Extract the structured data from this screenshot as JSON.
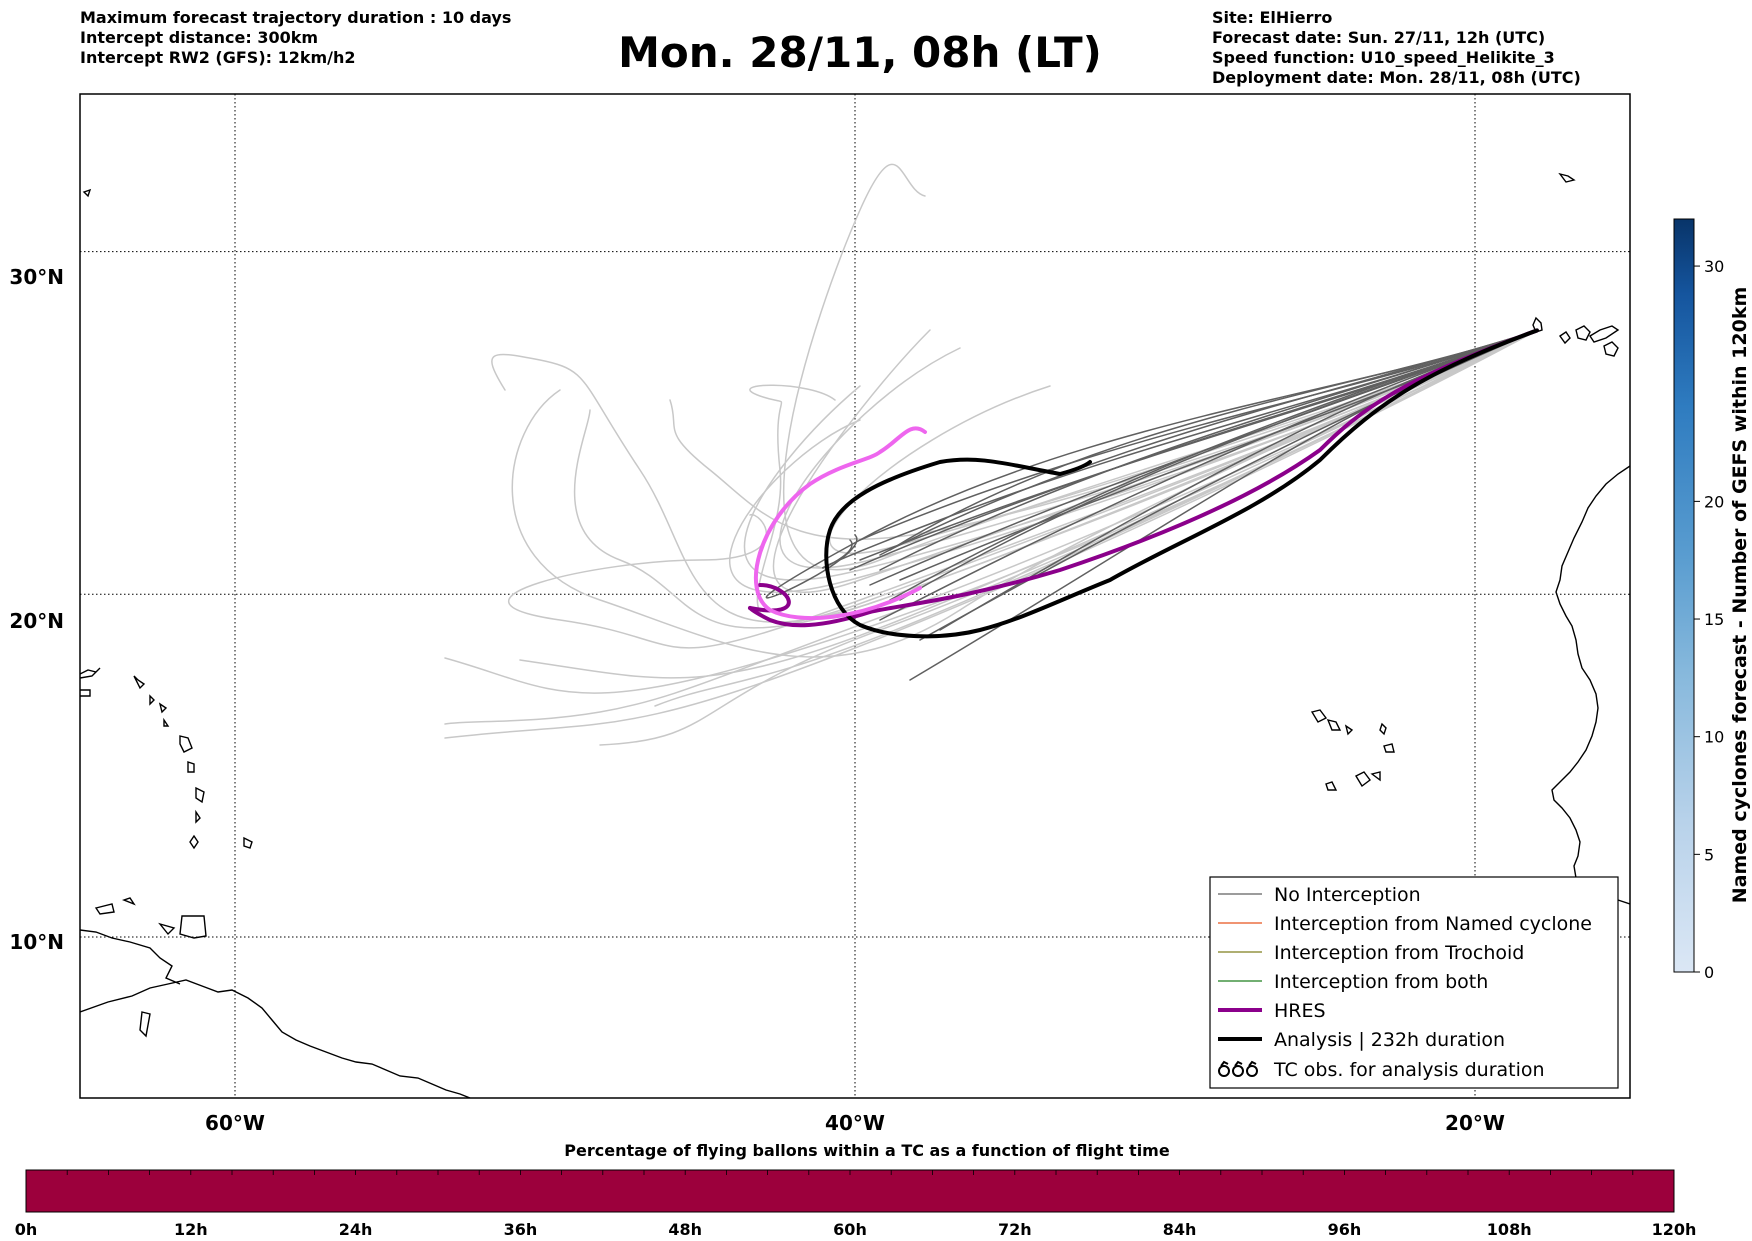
{
  "header_left": {
    "line1": "Maximum forecast trajectory duration : 10 days",
    "line2": "Intercept distance: 300km",
    "line3": "Intercept RW2 (GFS):  12km/h2"
  },
  "title": "Mon. 28/11, 08h (LT)",
  "header_right": {
    "line1": "Site: ElHierro",
    "line2": "Forecast date: Sun. 27/11, 12h (UTC)",
    "line3": "Speed function: U10_speed_Helikite_3",
    "line4": "Deployment date: Mon. 28/11, 08h (UTC)"
  },
  "map": {
    "lat_labels": [
      "30°N",
      "20°N",
      "10°N"
    ],
    "lon_labels": [
      "60°W",
      "40°W",
      "20°W"
    ],
    "grid_lats": [
      30,
      20,
      10
    ],
    "grid_lons": [
      -60,
      -40,
      -20
    ],
    "lon_range": [
      -65,
      -15
    ],
    "lat_range": [
      5.3,
      34.6
    ],
    "site": {
      "name": "ElHierro",
      "lon": -18.0,
      "lat": 27.7
    },
    "colors": {
      "no_interception": "#606060",
      "named_cyclone": "#e8541f",
      "trochoid": "#7f7f1f",
      "both": "#1f7f1f",
      "hres": "#8b008b",
      "analysis": "#000000",
      "faded_tracks": "#c8c8c8",
      "pink_track": "#ee66ee"
    }
  },
  "legend": {
    "items": [
      {
        "label": "No Interception"
      },
      {
        "label": "Interception from Named cyclone"
      },
      {
        "label": "Interception from Trochoid"
      },
      {
        "label": "Interception from both"
      },
      {
        "label": "HRES"
      },
      {
        "label": "Analysis | 232h duration"
      },
      {
        "label": "TC obs. for analysis duration"
      }
    ]
  },
  "colorbar": {
    "label": "Named cyclones forecast - Number of GEFS within 120km",
    "ticks": [
      "0",
      "5",
      "10",
      "15",
      "20",
      "30"
    ],
    "tick_values": [
      0,
      5,
      10,
      15,
      20,
      30
    ],
    "max": 32
  },
  "bottom_bar": {
    "title": "Percentage of flying ballons within a TC as a function of flight time",
    "ticks": [
      "0h",
      "12h",
      "24h",
      "36h",
      "48h",
      "60h",
      "72h",
      "84h",
      "96h",
      "108h",
      "120h"
    ],
    "color": "#9c003c"
  }
}
